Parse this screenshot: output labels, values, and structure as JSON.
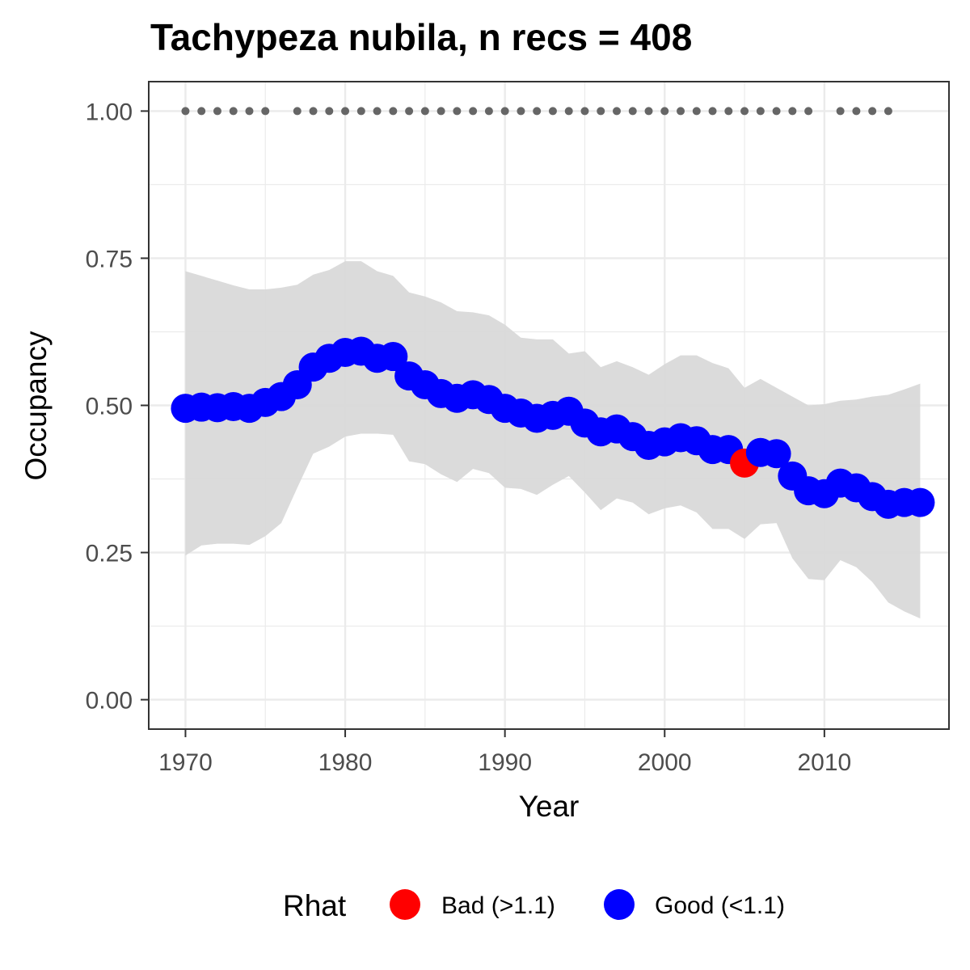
{
  "chart_data": {
    "type": "line",
    "title": "Tachypeza nubila, n recs = 408",
    "xlabel": "Year",
    "ylabel": "Occupancy",
    "xlim": [
      1967.7,
      2017.8
    ],
    "ylim": [
      -0.05,
      1.05
    ],
    "x_ticks": [
      1970,
      1980,
      1990,
      2000,
      2010
    ],
    "x_tick_labels": [
      "1970",
      "1980",
      "1990",
      "2000",
      "2010"
    ],
    "y_ticks": [
      0,
      0.25,
      0.5,
      0.75,
      1
    ],
    "y_tick_labels": [
      "0.00",
      "0.25",
      "0.50",
      "0.75",
      "1.00"
    ],
    "grid": true,
    "colors": {
      "bad": "#ff0000",
      "good": "#0000ff",
      "ribbon": "#d9d9d9",
      "record_points": "#666666",
      "grid": "#ebebeb",
      "panel_border": "#333333"
    },
    "x": [
      1970,
      1971,
      1972,
      1973,
      1974,
      1975,
      1976,
      1977,
      1978,
      1979,
      1980,
      1981,
      1982,
      1983,
      1984,
      1985,
      1986,
      1987,
      1988,
      1989,
      1990,
      1991,
      1992,
      1993,
      1994,
      1995,
      1996,
      1997,
      1998,
      1999,
      2000,
      2001,
      2002,
      2003,
      2004,
      2005,
      2006,
      2007,
      2008,
      2009,
      2010,
      2011,
      2012,
      2013,
      2014,
      2015,
      2016
    ],
    "series": [
      {
        "name": "Occupancy",
        "values": [
          0.495,
          0.497,
          0.496,
          0.498,
          0.495,
          0.505,
          0.515,
          0.535,
          0.565,
          0.58,
          0.59,
          0.592,
          0.58,
          0.583,
          0.55,
          0.535,
          0.52,
          0.512,
          0.518,
          0.51,
          0.495,
          0.487,
          0.478,
          0.483,
          0.49,
          0.47,
          0.455,
          0.46,
          0.447,
          0.432,
          0.438,
          0.445,
          0.44,
          0.425,
          0.425,
          0.402,
          0.42,
          0.418,
          0.38,
          0.355,
          0.35,
          0.368,
          0.36,
          0.345,
          0.332,
          0.335,
          0.335
        ],
        "rhat": [
          "good",
          "good",
          "good",
          "good",
          "good",
          "good",
          "good",
          "good",
          "good",
          "good",
          "good",
          "good",
          "good",
          "good",
          "good",
          "good",
          "good",
          "good",
          "good",
          "good",
          "good",
          "good",
          "good",
          "good",
          "good",
          "good",
          "good",
          "good",
          "good",
          "good",
          "good",
          "good",
          "good",
          "good",
          "good",
          "bad",
          "good",
          "good",
          "good",
          "good",
          "good",
          "good",
          "good",
          "good",
          "good",
          "good",
          "good"
        ]
      }
    ],
    "ribbon_upper": [
      0.728,
      0.72,
      0.712,
      0.704,
      0.697,
      0.697,
      0.7,
      0.705,
      0.722,
      0.73,
      0.745,
      0.745,
      0.728,
      0.72,
      0.692,
      0.685,
      0.675,
      0.66,
      0.658,
      0.653,
      0.637,
      0.615,
      0.612,
      0.612,
      0.588,
      0.592,
      0.565,
      0.575,
      0.565,
      0.552,
      0.57,
      0.585,
      0.585,
      0.572,
      0.563,
      0.53,
      0.545,
      0.53,
      0.515,
      0.5,
      0.502,
      0.508,
      0.51,
      0.515,
      0.518,
      0.527,
      0.537
    ],
    "ribbon_lower": [
      0.245,
      0.262,
      0.265,
      0.265,
      0.263,
      0.278,
      0.3,
      0.36,
      0.418,
      0.43,
      0.447,
      0.452,
      0.452,
      0.45,
      0.405,
      0.4,
      0.383,
      0.37,
      0.392,
      0.385,
      0.36,
      0.358,
      0.348,
      0.365,
      0.38,
      0.352,
      0.322,
      0.342,
      0.335,
      0.315,
      0.325,
      0.33,
      0.318,
      0.29,
      0.29,
      0.273,
      0.298,
      0.3,
      0.24,
      0.205,
      0.203,
      0.237,
      0.225,
      0.2,
      0.165,
      0.15,
      0.138
    ],
    "record_years": [
      1970,
      1971,
      1972,
      1973,
      1974,
      1975,
      1977,
      1978,
      1979,
      1980,
      1981,
      1982,
      1983,
      1984,
      1985,
      1986,
      1987,
      1988,
      1989,
      1990,
      1991,
      1992,
      1993,
      1994,
      1995,
      1996,
      1997,
      1998,
      1999,
      2000,
      2001,
      2002,
      2003,
      2004,
      2005,
      2006,
      2007,
      2008,
      2009,
      2011,
      2012,
      2013,
      2014
    ],
    "record_value": 1.0,
    "legend": {
      "title": "Rhat",
      "position": "bottom",
      "items": [
        {
          "label": "Bad (>1.1)",
          "color": "#ff0000"
        },
        {
          "label": "Good (<1.1)",
          "color": "#0000ff"
        }
      ]
    }
  }
}
